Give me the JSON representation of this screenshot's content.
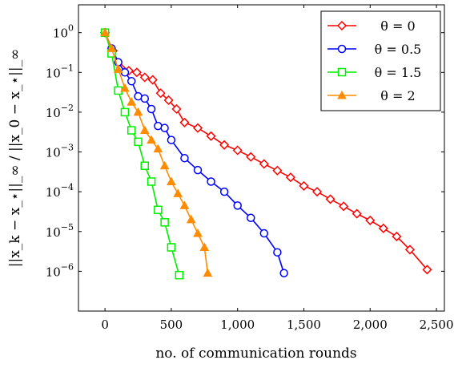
{
  "chart_data": {
    "type": "line",
    "title": "",
    "xlabel": "no. of communication rounds",
    "ylabel": "||x_k − x_⋆||_∞ / ||x_0 − x_⋆||_∞",
    "xscale": "linear",
    "yscale": "log",
    "xlim": [
      -200,
      2560
    ],
    "ylim": [
      1e-07,
      5
    ],
    "x_ticks": [
      0,
      500,
      1000,
      1500,
      2000,
      2500
    ],
    "x_tick_labels": [
      "0",
      "500",
      "1,000",
      "1,500",
      "2,000",
      "2,500"
    ],
    "y_ticks": [
      1,
      0.1,
      0.01,
      0.001,
      0.0001,
      1e-05,
      1e-06
    ],
    "y_tick_labels": [
      {
        "base": "10",
        "exp": "0"
      },
      {
        "base": "10",
        "exp": "−1"
      },
      {
        "base": "10",
        "exp": "−2"
      },
      {
        "base": "10",
        "exp": "−3"
      },
      {
        "base": "10",
        "exp": "−4"
      },
      {
        "base": "10",
        "exp": "−5"
      },
      {
        "base": "10",
        "exp": "−6"
      }
    ],
    "grid": false,
    "legend_position": "top-right",
    "series": [
      {
        "name": "θ = 0",
        "color": "#ff0000",
        "marker": "diamond",
        "x": [
          0,
          60,
          120,
          180,
          240,
          300,
          360,
          420,
          480,
          540,
          600,
          700,
          800,
          900,
          1000,
          1100,
          1200,
          1300,
          1400,
          1500,
          1600,
          1700,
          1800,
          1900,
          2000,
          2100,
          2200,
          2300,
          2430
        ],
        "y": [
          1,
          0.35,
          0.13,
          0.11,
          0.1,
          0.075,
          0.065,
          0.03,
          0.02,
          0.012,
          0.0055,
          0.004,
          0.0025,
          0.0015,
          0.0011,
          0.00075,
          0.0005,
          0.00034,
          0.00023,
          0.00014,
          0.0001,
          6.5e-05,
          4.3e-05,
          2.8e-05,
          1.9e-05,
          1.2e-05,
          7.5e-06,
          3.5e-06,
          1.1e-06
        ]
      },
      {
        "name": "θ = 0.5",
        "color": "#0000ff",
        "marker": "circle",
        "x": [
          0,
          50,
          100,
          150,
          200,
          250,
          300,
          350,
          400,
          450,
          500,
          600,
          700,
          800,
          900,
          1000,
          1100,
          1200,
          1300,
          1350
        ],
        "y": [
          1,
          0.4,
          0.18,
          0.1,
          0.06,
          0.025,
          0.022,
          0.012,
          0.0045,
          0.004,
          0.002,
          0.0007,
          0.00035,
          0.00018,
          0.0001,
          4.5e-05,
          2.2e-05,
          9e-06,
          3e-06,
          9e-07
        ]
      },
      {
        "name": "θ = 1.5",
        "color": "#00ee00",
        "marker": "square",
        "x": [
          0,
          50,
          100,
          150,
          200,
          250,
          300,
          350,
          400,
          450,
          500,
          560
        ],
        "y": [
          1,
          0.3,
          0.035,
          0.01,
          0.0035,
          0.0018,
          0.00045,
          0.00018,
          3.5e-05,
          1.7e-05,
          4e-06,
          8e-07
        ]
      },
      {
        "name": "θ = 2",
        "color": "#ff8c00",
        "marker": "triangle",
        "x": [
          0,
          50,
          100,
          150,
          200,
          250,
          300,
          350,
          400,
          450,
          500,
          550,
          600,
          650,
          700,
          750,
          775
        ],
        "y": [
          1,
          0.4,
          0.12,
          0.04,
          0.018,
          0.01,
          0.0035,
          0.002,
          0.0012,
          0.00045,
          0.00018,
          9e-05,
          4.5e-05,
          2e-05,
          9e-06,
          4e-06,
          9e-07
        ]
      }
    ]
  }
}
